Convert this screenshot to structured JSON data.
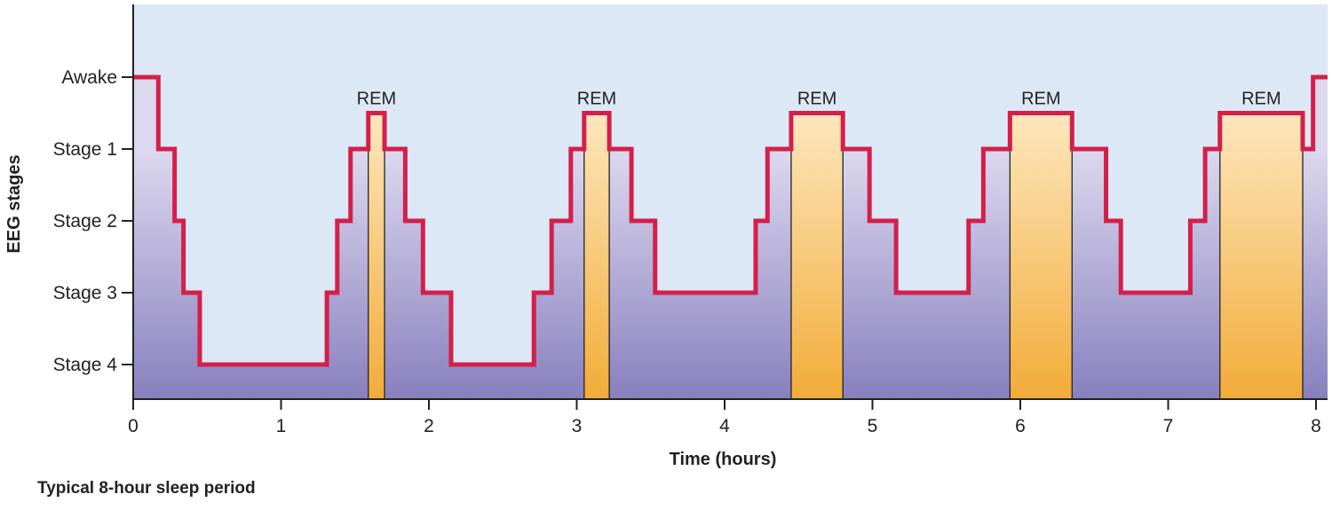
{
  "chart_data": {
    "type": "line",
    "step": true,
    "xlabel": "Time (hours)",
    "ylabel": "EEG stages",
    "caption": "Typical 8-hour sleep period",
    "xlim": [
      0,
      8.05
    ],
    "x_ticks": [
      "0",
      "1",
      "2",
      "3",
      "4",
      "5",
      "6",
      "7",
      "8"
    ],
    "y_categories": [
      "Awake",
      "Stage 1",
      "Stage 2",
      "Stage 3",
      "Stage 4"
    ],
    "rem_label": "REM",
    "rem_level": 0.5,
    "rem_periods": [
      {
        "start": 1.59,
        "end": 1.7
      },
      {
        "start": 3.05,
        "end": 3.22
      },
      {
        "start": 4.45,
        "end": 4.8
      },
      {
        "start": 5.93,
        "end": 6.35
      },
      {
        "start": 7.35,
        "end": 7.91
      }
    ],
    "hypnogram": {
      "x": [
        0.0,
        0.17,
        0.28,
        0.34,
        0.45,
        1.31,
        1.38,
        1.47,
        1.59,
        1.7,
        1.84,
        1.96,
        2.15,
        2.71,
        2.83,
        2.96,
        3.05,
        3.22,
        3.37,
        3.53,
        4.21,
        4.29,
        4.45,
        4.8,
        4.98,
        5.16,
        5.65,
        5.75,
        5.83,
        5.93,
        6.35,
        6.58,
        6.68,
        7.15,
        7.25,
        7.35,
        7.91,
        7.98,
        8.05
      ],
      "y": [
        0,
        1,
        2,
        3,
        4,
        3,
        2,
        1,
        0.5,
        1,
        2,
        3,
        4,
        3,
        2,
        1,
        0.5,
        1,
        2,
        3,
        2,
        1,
        0.5,
        1,
        2,
        3,
        2,
        1,
        1,
        0.5,
        1,
        2,
        3,
        2,
        1,
        0.5,
        1,
        0,
        0
      ]
    },
    "colors": {
      "background": "#dce8f6",
      "line": "#d41f4a",
      "fill_top": "#dcd8ee",
      "fill_bottom": "#8880be",
      "awake_fill_top": "#fffadc",
      "awake_fill_bottom": "#fbe6a8",
      "rem_fill_top": "#fde6bc",
      "rem_fill_bottom": "#f2ac38"
    }
  }
}
